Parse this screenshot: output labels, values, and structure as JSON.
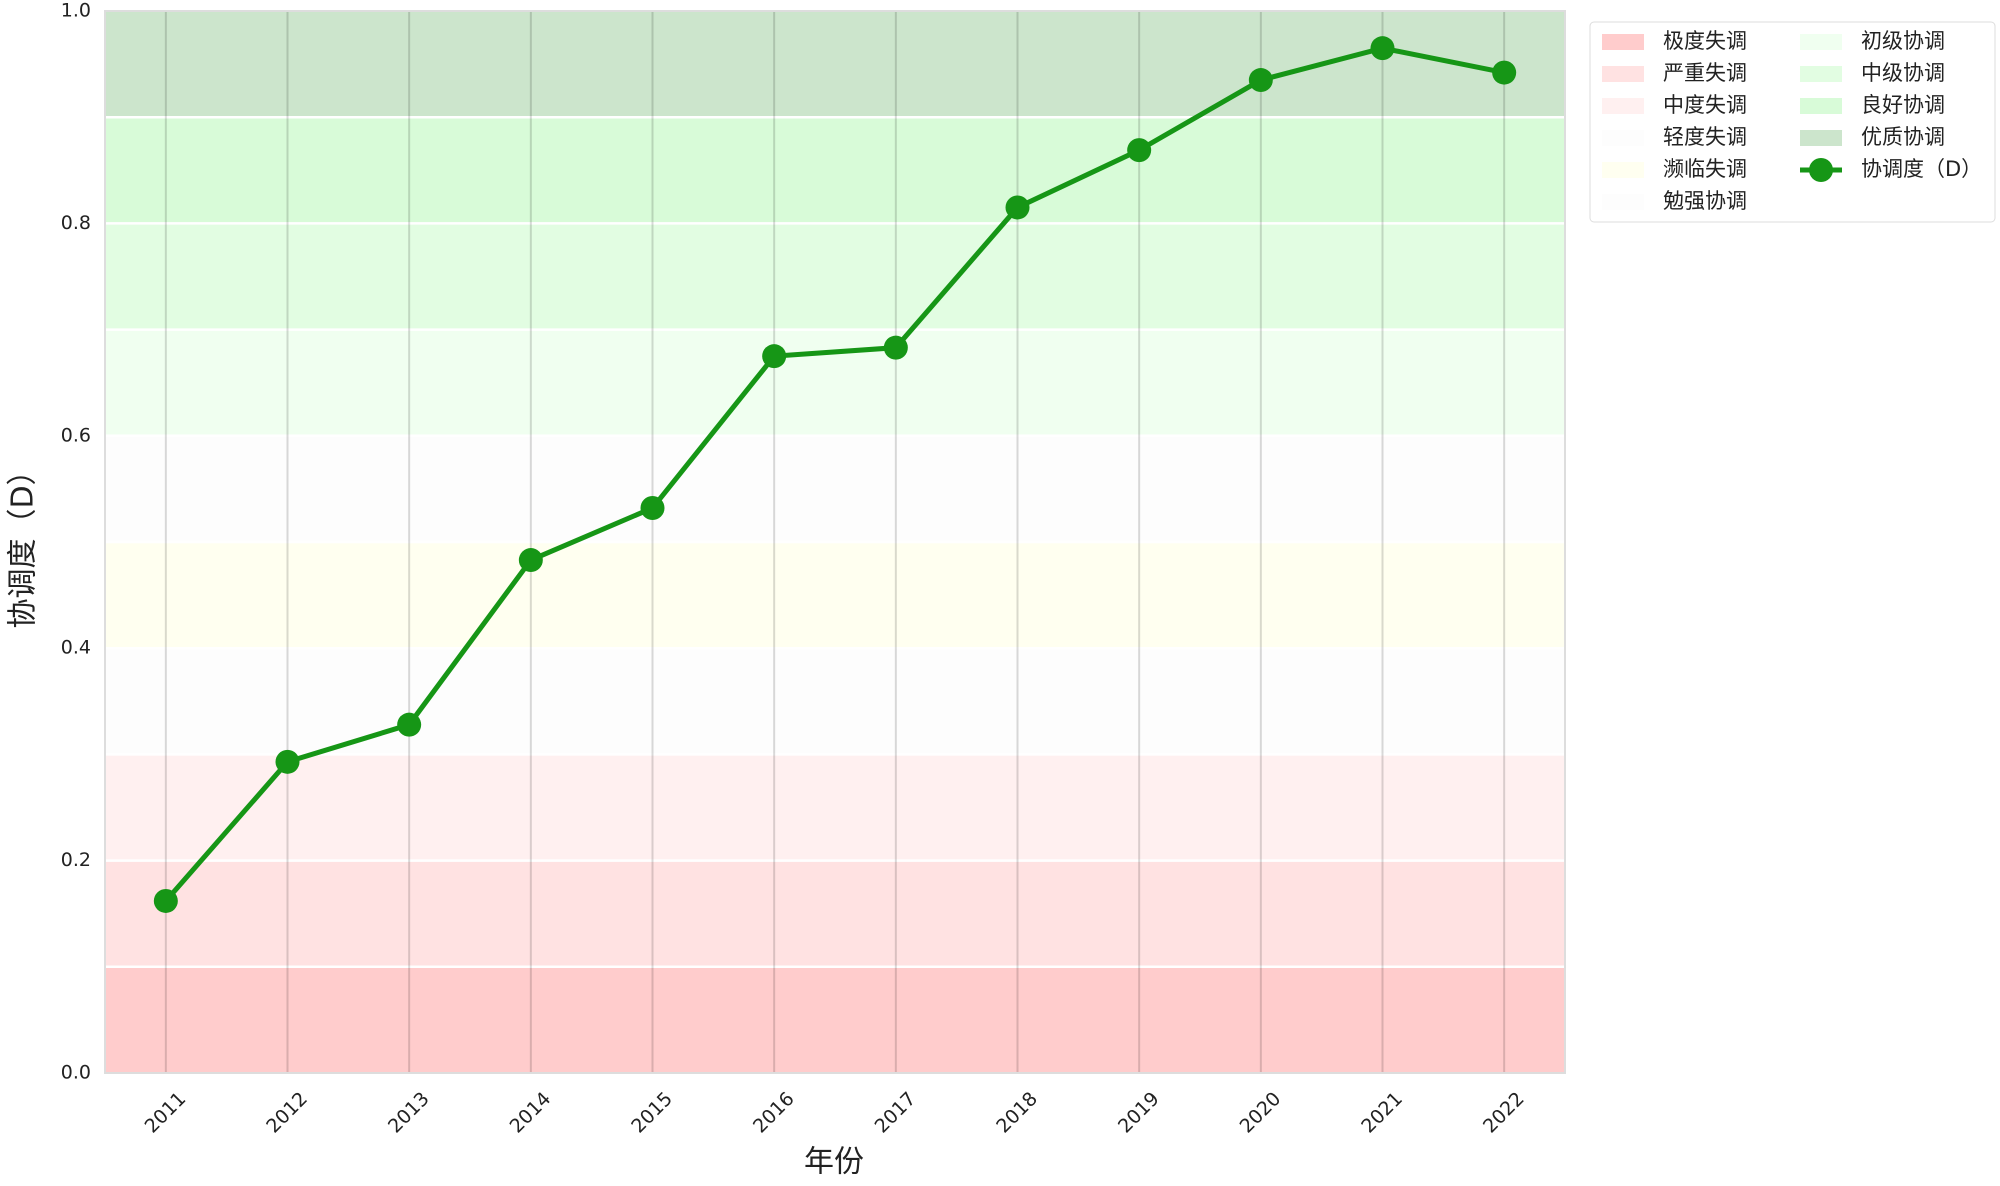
{
  "chart_data": {
    "type": "line",
    "x_label": "年份",
    "y_label": "协调度（D）",
    "categories": [
      "2011",
      "2012",
      "2013",
      "2014",
      "2015",
      "2016",
      "2017",
      "2018",
      "2019",
      "2020",
      "2021",
      "2022"
    ],
    "series": [
      {
        "name": "协调度（D）",
        "color": "#169616",
        "values": [
          0.162,
          0.293,
          0.328,
          0.483,
          0.532,
          0.675,
          0.683,
          0.815,
          0.869,
          0.935,
          0.965,
          0.942
        ]
      }
    ],
    "bands": [
      {
        "name": "极度失调",
        "range": [
          0,
          0.1
        ],
        "color": "#ffcccc"
      },
      {
        "name": "严重失调",
        "range": [
          0.1,
          0.2
        ],
        "color": "#ffe2e2"
      },
      {
        "name": "中度失调",
        "range": [
          0.2,
          0.3
        ],
        "color": "#fff0f0"
      },
      {
        "name": "轻度失调",
        "range": [
          0.3,
          0.4
        ],
        "color": "#fdfdfd"
      },
      {
        "name": "濒临失调",
        "range": [
          0.4,
          0.5
        ],
        "color": "#fffff0"
      },
      {
        "name": "勉强协调",
        "range": [
          0.5,
          0.6
        ],
        "color": "#fdfdfd"
      },
      {
        "name": "初级协调",
        "range": [
          0.6,
          0.7
        ],
        "color": "#f0fff0"
      },
      {
        "name": "中级协调",
        "range": [
          0.7,
          0.8
        ],
        "color": "#e2fde2"
      },
      {
        "name": "良好协调",
        "range": [
          0.8,
          0.9
        ],
        "color": "#d8fbd8"
      },
      {
        "name": "优质协调",
        "range": [
          0.9,
          1.0
        ],
        "color": "#cce5cc"
      }
    ],
    "ylim": [
      0,
      1.0
    ],
    "yticks": [
      {
        "value": 0,
        "label": "0.0"
      },
      0.2,
      0.4,
      0.6,
      0.8,
      {
        "value": 1,
        "label": "1.0"
      }
    ],
    "grid": true
  }
}
